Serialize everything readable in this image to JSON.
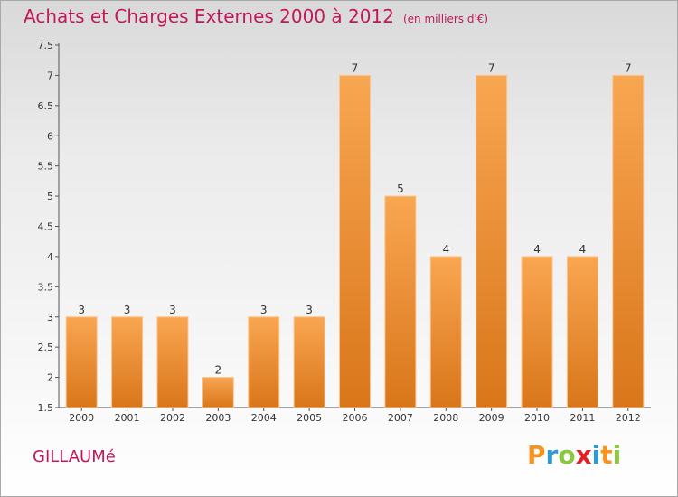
{
  "title": "Achats et Charges Externes 2000 à 2012",
  "unit": "(en milliers d'€)",
  "commune": "GILLAUMé",
  "brand": {
    "letters": [
      "P",
      "r",
      "o",
      "x",
      "i",
      "t",
      "i"
    ],
    "colors": [
      "#f7941d",
      "#2e9ad0",
      "#8dc63f",
      "#e31e24",
      "#2e9ad0",
      "#f7941d",
      "#8dc63f"
    ]
  },
  "colors": {
    "title": "#c2185b",
    "bar_top": "#f9a651",
    "bar_bottom": "#d9761a"
  },
  "chart_data": {
    "type": "bar",
    "categories": [
      "2000",
      "2001",
      "2002",
      "2003",
      "2004",
      "2005",
      "2006",
      "2007",
      "2008",
      "2009",
      "2010",
      "2011",
      "2012"
    ],
    "values": [
      3,
      3,
      3,
      2,
      3,
      3,
      7,
      5,
      4,
      7,
      4,
      4,
      7
    ],
    "ylim": [
      1.5,
      7.5
    ],
    "yticks": [
      "1.5",
      "2",
      "2.5",
      "3",
      "3.5",
      "4",
      "4.5",
      "5",
      "5.5",
      "6",
      "6.5",
      "7",
      "7.5"
    ],
    "grid": false,
    "data_labels": true
  }
}
